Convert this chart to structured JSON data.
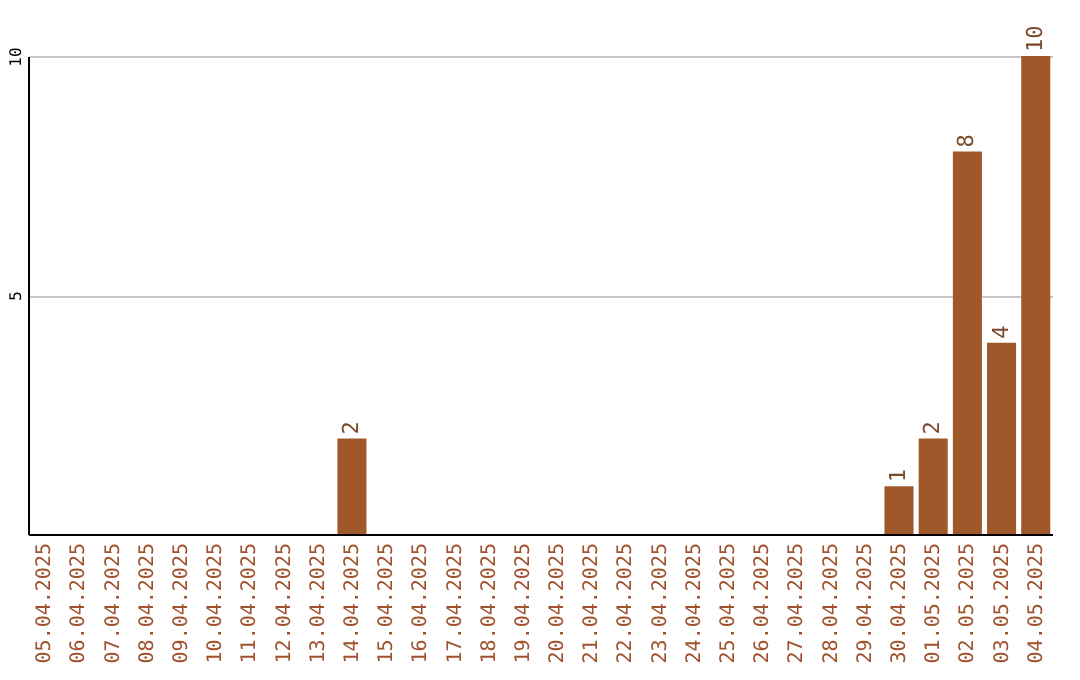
{
  "chart_data": {
    "type": "bar",
    "categories": [
      "05.04.2025",
      "06.04.2025",
      "07.04.2025",
      "08.04.2025",
      "09.04.2025",
      "10.04.2025",
      "11.04.2025",
      "12.04.2025",
      "13.04.2025",
      "14.04.2025",
      "15.04.2025",
      "16.04.2025",
      "17.04.2025",
      "18.04.2025",
      "19.04.2025",
      "20.04.2025",
      "21.04.2025",
      "22.04.2025",
      "23.04.2025",
      "24.04.2025",
      "25.04.2025",
      "26.04.2025",
      "27.04.2025",
      "28.04.2025",
      "29.04.2025",
      "30.04.2025",
      "01.05.2025",
      "02.05.2025",
      "03.05.2025",
      "04.05.2025"
    ],
    "values": [
      0,
      0,
      0,
      0,
      0,
      0,
      0,
      0,
      0,
      2,
      0,
      0,
      0,
      0,
      0,
      0,
      0,
      0,
      0,
      0,
      0,
      0,
      0,
      0,
      0,
      1,
      2,
      8,
      4,
      10
    ],
    "value_labels": [
      null,
      null,
      null,
      null,
      null,
      null,
      null,
      null,
      null,
      "2",
      null,
      null,
      null,
      null,
      null,
      null,
      null,
      null,
      null,
      null,
      null,
      null,
      null,
      null,
      null,
      "1",
      "2",
      "8",
      "4",
      "10"
    ],
    "color": "#a0582a",
    "ylim": [
      0,
      10
    ],
    "yticks": [
      5,
      10
    ],
    "grid": "y"
  }
}
